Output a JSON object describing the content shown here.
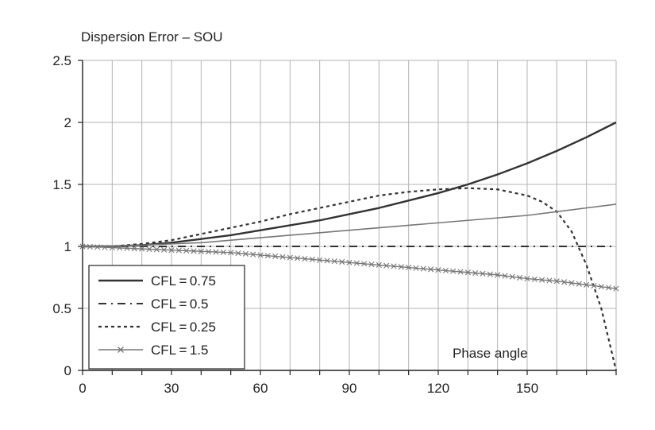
{
  "chart_data": {
    "type": "line",
    "title": "Dispersion Error – SOU",
    "xlabel": "",
    "ylabel": "",
    "annotation": "Phase angle",
    "xlim": [
      0,
      180
    ],
    "ylim": [
      0,
      2.5
    ],
    "x_ticks": [
      0,
      30,
      60,
      90,
      120,
      150
    ],
    "x_tick_labels": [
      "0",
      "30",
      "60",
      "90",
      "120",
      "150"
    ],
    "y_ticks": [
      0,
      0.5,
      1,
      1.5,
      2,
      2.5
    ],
    "y_tick_labels": [
      "0",
      "0.5",
      "1",
      "1.5",
      "2",
      "2.5"
    ],
    "x_grid_step": 10,
    "grid": true,
    "legend_position": "bottom-left",
    "series": [
      {
        "name": "CFL=0.75",
        "label": "CFL = 0.75",
        "style": "solid-thick",
        "x": [
          0,
          10,
          20,
          30,
          40,
          50,
          60,
          70,
          80,
          90,
          100,
          110,
          120,
          130,
          140,
          150,
          160,
          170,
          180
        ],
        "y": [
          1.0,
          1.0,
          1.01,
          1.03,
          1.06,
          1.09,
          1.13,
          1.17,
          1.21,
          1.26,
          1.31,
          1.37,
          1.43,
          1.5,
          1.58,
          1.67,
          1.77,
          1.88,
          2.0
        ]
      },
      {
        "name": "CFL=0.5",
        "label": "CFL = 0.5",
        "style": "dash-dot",
        "x": [
          0,
          10,
          20,
          30,
          40,
          50,
          60,
          70,
          80,
          90,
          100,
          110,
          120,
          130,
          140,
          150,
          160,
          170,
          180
        ],
        "y": [
          1.0,
          1.0,
          1.0,
          1.0,
          1.0,
          1.0,
          1.0,
          1.0,
          1.0,
          1.0,
          1.0,
          1.0,
          1.0,
          1.0,
          1.0,
          1.0,
          1.0,
          1.0,
          1.0
        ]
      },
      {
        "name": "CFL=0.25",
        "label": "CFL = 0.25",
        "style": "dotted",
        "x": [
          0,
          10,
          20,
          30,
          40,
          50,
          60,
          70,
          80,
          90,
          100,
          110,
          120,
          130,
          140,
          150,
          155,
          160,
          165,
          170,
          175,
          180
        ],
        "y": [
          1.0,
          1.0,
          1.02,
          1.05,
          1.1,
          1.15,
          1.2,
          1.26,
          1.31,
          1.36,
          1.41,
          1.44,
          1.46,
          1.47,
          1.46,
          1.41,
          1.36,
          1.28,
          1.12,
          0.85,
          0.5,
          0.0
        ]
      },
      {
        "name": "CFL=1.5",
        "label": "CFL = 1.5",
        "style": "thin-cross",
        "x": [
          0,
          10,
          20,
          30,
          40,
          50,
          60,
          70,
          80,
          90,
          100,
          110,
          120,
          130,
          140,
          150,
          160,
          170,
          180
        ],
        "y": [
          1.0,
          0.99,
          0.98,
          0.97,
          0.96,
          0.95,
          0.93,
          0.91,
          0.89,
          0.87,
          0.85,
          0.83,
          0.81,
          0.79,
          0.77,
          0.74,
          0.72,
          0.69,
          0.66
        ]
      },
      {
        "name": "unlabeled",
        "label": "",
        "style": "thin",
        "x": [
          0,
          10,
          20,
          30,
          40,
          50,
          60,
          70,
          80,
          90,
          100,
          110,
          120,
          130,
          140,
          150,
          160,
          170,
          180
        ],
        "y": [
          1.0,
          1.0,
          1.01,
          1.02,
          1.03,
          1.05,
          1.07,
          1.09,
          1.11,
          1.13,
          1.15,
          1.17,
          1.19,
          1.21,
          1.23,
          1.25,
          1.28,
          1.31,
          1.34
        ]
      }
    ],
    "colors": {
      "axis": "#222222",
      "grid": "#b3b3b3",
      "line_dark": "#333333",
      "line_light": "#777777"
    }
  }
}
